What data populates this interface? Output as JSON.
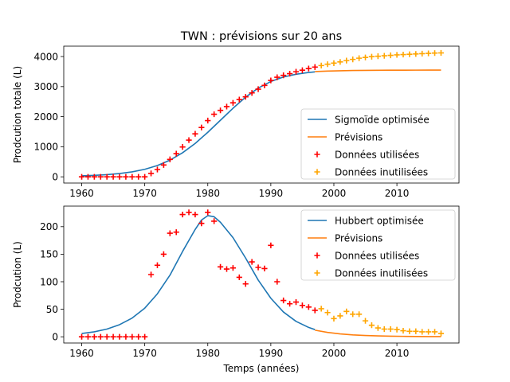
{
  "title": "TWN : prévisions sur 20 ans",
  "chart_data": [
    {
      "type": "line",
      "ylabel": "Prodcution totale (L)",
      "xlabel": "",
      "xlim": [
        1957.15,
        2019.85
      ],
      "ylim": [
        -207,
        4345
      ],
      "xticks": [
        1960,
        1970,
        1980,
        1990,
        2000,
        2010
      ],
      "yticks": [
        0,
        1000,
        2000,
        3000,
        4000
      ],
      "legend_position": "lower-right",
      "series": [
        {
          "name": "Sigmoïde optimisée",
          "kind": "line",
          "color": "#1f77b4",
          "x": [
            1960,
            1962,
            1964,
            1966,
            1968,
            1970,
            1972,
            1974,
            1976,
            1978,
            1980,
            1982,
            1984,
            1986,
            1988,
            1990,
            1992,
            1994,
            1996,
            1997
          ],
          "y": [
            33,
            48,
            72,
            108,
            165,
            250,
            375,
            555,
            800,
            1110,
            1480,
            1880,
            2280,
            2650,
            2950,
            3170,
            3320,
            3410,
            3470,
            3490
          ]
        },
        {
          "name": "Prévisions",
          "kind": "line",
          "color": "#ff7f0e",
          "x": [
            1997,
            1999,
            2001,
            2003,
            2005,
            2007,
            2009,
            2011,
            2013,
            2015,
            2017
          ],
          "y": [
            3500,
            3515,
            3527,
            3535,
            3540,
            3543,
            3545,
            3547,
            3548,
            3549,
            3550
          ]
        },
        {
          "name": "Données utilisées",
          "kind": "scatter",
          "color": "#ff0000",
          "x": [
            1960,
            1961,
            1962,
            1963,
            1964,
            1965,
            1966,
            1967,
            1968,
            1969,
            1970,
            1971,
            1972,
            1973,
            1974,
            1975,
            1976,
            1977,
            1978,
            1979,
            1980,
            1981,
            1982,
            1983,
            1984,
            1985,
            1986,
            1987,
            1988,
            1989,
            1990,
            1991,
            1992,
            1993,
            1994,
            1995,
            1996,
            1997
          ],
          "y": [
            0,
            0,
            0,
            0,
            0,
            0,
            0,
            0,
            0,
            0,
            0,
            113,
            243,
            393,
            580,
            771,
            993,
            1220,
            1430,
            1640,
            1870,
            2080,
            2210,
            2335,
            2460,
            2570,
            2660,
            2790,
            2915,
            3040,
            3205,
            3310,
            3375,
            3430,
            3495,
            3545,
            3600,
            3650
          ]
        },
        {
          "name": "Données inutilisées",
          "kind": "scatter",
          "color": "#ffa500",
          "x": [
            1998,
            1999,
            2000,
            2001,
            2002,
            2003,
            2004,
            2005,
            2006,
            2007,
            2008,
            2009,
            2010,
            2011,
            2012,
            2013,
            2014,
            2015,
            2016,
            2017
          ],
          "y": [
            3700,
            3745,
            3780,
            3820,
            3865,
            3905,
            3945,
            3970,
            3995,
            4010,
            4025,
            4040,
            4055,
            4065,
            4075,
            4085,
            4095,
            4105,
            4115,
            4120
          ]
        }
      ]
    },
    {
      "type": "line",
      "ylabel": "Prodcution (L)",
      "xlabel": "Temps (années)",
      "xlim": [
        1957.15,
        2019.85
      ],
      "ylim": [
        -11.3,
        237.3
      ],
      "xticks": [
        1960,
        1970,
        1980,
        1990,
        2000,
        2010
      ],
      "yticks": [
        0,
        50,
        100,
        150,
        200
      ],
      "legend_position": "upper-right",
      "series": [
        {
          "name": "Hubbert optimisée",
          "kind": "line",
          "color": "#1f77b4",
          "x": [
            1960,
            1962,
            1964,
            1966,
            1968,
            1970,
            1972,
            1974,
            1976,
            1978,
            1979,
            1980,
            1981,
            1982,
            1984,
            1986,
            1988,
            1990,
            1992,
            1994,
            1996,
            1997
          ],
          "y": [
            6,
            9,
            14,
            22,
            34,
            52,
            78,
            112,
            155,
            195,
            212,
            220,
            218,
            208,
            180,
            143,
            103,
            70,
            45,
            28,
            17,
            13
          ]
        },
        {
          "name": "Prévisions",
          "kind": "line",
          "color": "#ff7f0e",
          "x": [
            1997,
            1999,
            2001,
            2003,
            2005,
            2007,
            2009,
            2011,
            2013,
            2015,
            2017
          ],
          "y": [
            12,
            8,
            5.2,
            3.4,
            2.3,
            1.6,
            1.1,
            0.8,
            0.6,
            0.4,
            0.3
          ]
        },
        {
          "name": "Données utilisées",
          "kind": "scatter",
          "color": "#ff0000",
          "x": [
            1960,
            1961,
            1962,
            1963,
            1964,
            1965,
            1966,
            1967,
            1968,
            1969,
            1970,
            1971,
            1972,
            1973,
            1974,
            1975,
            1976,
            1977,
            1978,
            1979,
            1980,
            1981,
            1982,
            1983,
            1984,
            1985,
            1986,
            1987,
            1988,
            1989,
            1990,
            1991,
            1992,
            1993,
            1994,
            1995,
            1996,
            1997
          ],
          "y": [
            0,
            0,
            0,
            0,
            0,
            0,
            0,
            0,
            0,
            0,
            0,
            113,
            130,
            150,
            188,
            190,
            222,
            226,
            222,
            206,
            226,
            210,
            127,
            123,
            125,
            108,
            96,
            136,
            126,
            124,
            166,
            100,
            66,
            60,
            63,
            57,
            54,
            48
          ]
        },
        {
          "name": "Données inutilisées",
          "kind": "scatter",
          "color": "#ffa500",
          "x": [
            1998,
            1999,
            2000,
            2001,
            2002,
            2003,
            2004,
            2005,
            2006,
            2007,
            2008,
            2009,
            2010,
            2011,
            2012,
            2013,
            2014,
            2015,
            2016,
            2017
          ],
          "y": [
            51,
            44,
            33,
            38,
            46,
            41,
            41,
            29,
            21,
            16,
            14,
            14,
            13,
            11,
            10,
            10,
            9,
            9,
            9,
            6
          ]
        }
      ]
    }
  ]
}
